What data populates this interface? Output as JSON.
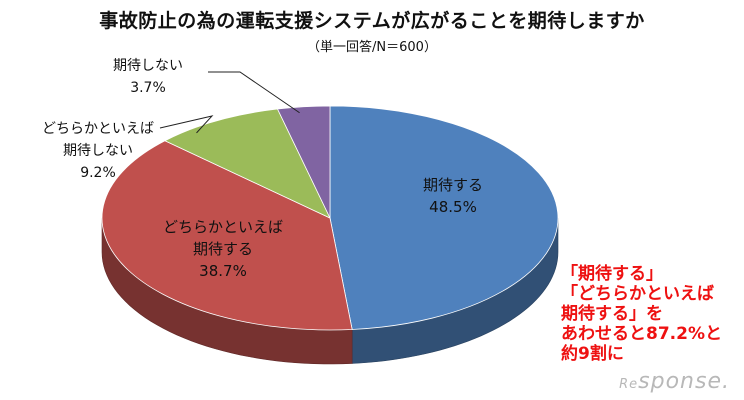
{
  "title": "事故防止の為の運転支援システムが広がることを期待しますか",
  "subtitle": "（単一回答/N＝600）",
  "chart_data": {
    "type": "pie",
    "slices": [
      {
        "label_lines": [
          "期待する"
        ],
        "value": 48.5,
        "value_text": "48.5%",
        "color": "#4f81bd"
      },
      {
        "label_lines": [
          "どちらかといえば",
          "期待する"
        ],
        "value": 38.7,
        "value_text": "38.7%",
        "color": "#c0504d"
      },
      {
        "label_lines": [
          "どちらかといえば",
          "期待しない"
        ],
        "value": 9.2,
        "value_text": "9.2%",
        "color": "#9bbb59"
      },
      {
        "label_lines": [
          "期待しない"
        ],
        "value": 3.7,
        "value_text": "3.7%",
        "color": "#8064a2"
      }
    ]
  },
  "callout": {
    "line1": "「期待する」",
    "line2": "「どちらかといえば",
    "line3": "期待する」を",
    "line4": "あわせると87.2%と",
    "line5": "約9割に",
    "color": "#ee1111"
  },
  "watermark": "Response."
}
